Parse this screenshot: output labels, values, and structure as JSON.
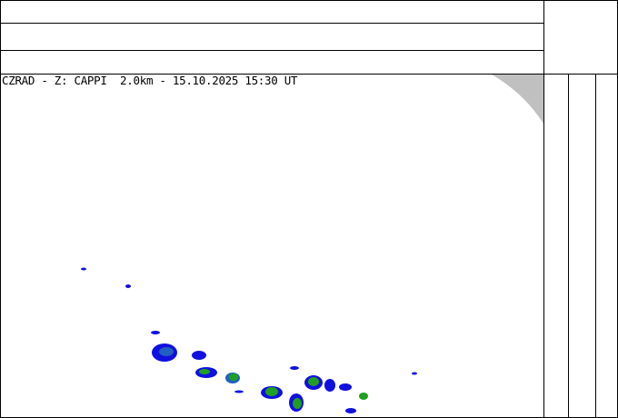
{
  "radar": {
    "title": "CZRAD - Z: CAPPI  2.0km - 15.10.2025 15:30 UT",
    "product": "CAPPI",
    "height": "2.0km",
    "date": "15.10.2025",
    "time": "15:30 UT"
  },
  "colors": {
    "out_of_range": "#c0c0c0",
    "echo_low": "#1010e0",
    "echo_mid": "#2060c0",
    "echo_high": "#20a020",
    "echo_peak": "#60c020"
  }
}
